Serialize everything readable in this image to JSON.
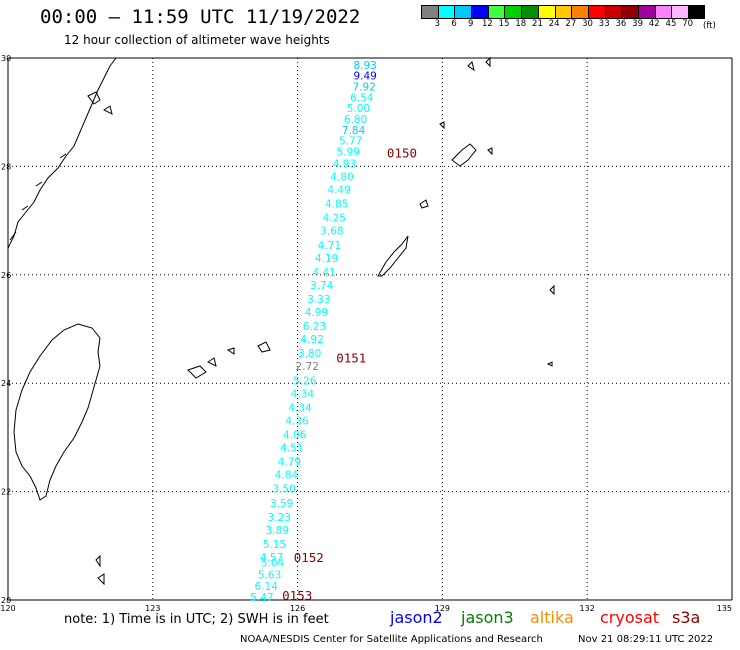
{
  "header": {
    "title": "00:00 – 11:59 UTC 11/19/2022",
    "subtitle": "12 hour collection of altimeter wave heights"
  },
  "legend": {
    "colors": [
      "#808080",
      "#00ffff",
      "#00c8ff",
      "#0000ff",
      "#40ff40",
      "#00d000",
      "#009000",
      "#ffff00",
      "#ffc800",
      "#ff8000",
      "#ff0000",
      "#c80000",
      "#900000",
      "#a000a0",
      "#ff80ff",
      "#ffb4ff",
      "#000000"
    ],
    "labels": [
      "3",
      "6",
      "9",
      "12",
      "15",
      "18",
      "21",
      "24",
      "27",
      "30",
      "33",
      "36",
      "39",
      "42",
      "45",
      "70"
    ],
    "unit": "(ft)"
  },
  "axes": {
    "lat_labels": [
      "30",
      "28",
      "26",
      "24",
      "22",
      "20"
    ],
    "lon_labels": [
      "120",
      "123",
      "126",
      "129",
      "132",
      "135"
    ]
  },
  "chart_data": {
    "type": "map",
    "region": {
      "lon_range": [
        120,
        135
      ],
      "lat_range": [
        20,
        30
      ]
    },
    "swh_unit": "ft",
    "track": [
      {
        "lon": 127.4,
        "lat": 29.8,
        "swh": "8.93",
        "color": "#00c8ff"
      },
      {
        "lon": 127.4,
        "lat": 29.6,
        "swh": "9.49",
        "color": "#0000ff"
      },
      {
        "lon": 127.38,
        "lat": 29.4,
        "swh": "7.92",
        "color": "#00c8ff"
      },
      {
        "lon": 127.33,
        "lat": 29.2,
        "swh": "6.54",
        "color": "#00ffff"
      },
      {
        "lon": 127.26,
        "lat": 29.0,
        "swh": "5.00",
        "color": "#00ffff"
      },
      {
        "lon": 127.2,
        "lat": 28.8,
        "swh": "6.80",
        "color": "#00ffff"
      },
      {
        "lon": 127.16,
        "lat": 28.6,
        "swh": "7.84",
        "color": "#00c8ff"
      },
      {
        "lon": 127.1,
        "lat": 28.4,
        "swh": "5.77",
        "color": "#00ffff"
      },
      {
        "lon": 127.05,
        "lat": 28.2,
        "swh": "5.99",
        "color": "#00ffff"
      },
      {
        "lon": 126.97,
        "lat": 27.98,
        "swh": "4.93",
        "color": "#00ffff"
      },
      {
        "lon": 126.92,
        "lat": 27.74,
        "swh": "4.80",
        "color": "#00ffff"
      },
      {
        "lon": 126.86,
        "lat": 27.5,
        "swh": "4.49",
        "color": "#00ffff"
      },
      {
        "lon": 126.81,
        "lat": 27.24,
        "swh": "4.85",
        "color": "#00ffff"
      },
      {
        "lon": 126.76,
        "lat": 26.98,
        "swh": "4.25",
        "color": "#00ffff"
      },
      {
        "lon": 126.71,
        "lat": 26.74,
        "swh": "3.68",
        "color": "#00ffff"
      },
      {
        "lon": 126.66,
        "lat": 26.48,
        "swh": "4.71",
        "color": "#00ffff"
      },
      {
        "lon": 126.6,
        "lat": 26.24,
        "swh": "4.19",
        "color": "#00ffff"
      },
      {
        "lon": 126.55,
        "lat": 25.98,
        "swh": "4.41",
        "color": "#00ffff"
      },
      {
        "lon": 126.5,
        "lat": 25.74,
        "swh": "3.74",
        "color": "#00ffff"
      },
      {
        "lon": 126.44,
        "lat": 25.48,
        "swh": "3.33",
        "color": "#00ffff"
      },
      {
        "lon": 126.39,
        "lat": 25.24,
        "swh": "4.99",
        "color": "#00ffff"
      },
      {
        "lon": 126.35,
        "lat": 24.98,
        "swh": "6.23",
        "color": "#00ffff"
      },
      {
        "lon": 126.3,
        "lat": 24.74,
        "swh": "4.92",
        "color": "#00ffff"
      },
      {
        "lon": 126.25,
        "lat": 24.48,
        "swh": "3.80",
        "color": "#00ffff"
      },
      {
        "lon": 126.2,
        "lat": 24.24,
        "swh": "2.72",
        "color": "#808080"
      },
      {
        "lon": 126.15,
        "lat": 23.98,
        "swh": "5.26",
        "color": "#00ffff"
      },
      {
        "lon": 126.1,
        "lat": 23.74,
        "swh": "4.34",
        "color": "#00ffff"
      },
      {
        "lon": 126.05,
        "lat": 23.48,
        "swh": "4.34",
        "color": "#00ffff"
      },
      {
        "lon": 125.99,
        "lat": 23.24,
        "swh": "4.36",
        "color": "#00ffff"
      },
      {
        "lon": 125.94,
        "lat": 22.98,
        "swh": "4.06",
        "color": "#00ffff"
      },
      {
        "lon": 125.88,
        "lat": 22.74,
        "swh": "4.51",
        "color": "#00ffff"
      },
      {
        "lon": 125.83,
        "lat": 22.48,
        "swh": "4.79",
        "color": "#00ffff"
      },
      {
        "lon": 125.77,
        "lat": 22.24,
        "swh": "4.84",
        "color": "#00ffff"
      },
      {
        "lon": 125.72,
        "lat": 21.98,
        "swh": "3.50",
        "color": "#00ffff"
      },
      {
        "lon": 125.67,
        "lat": 21.72,
        "swh": "3.59",
        "color": "#00ffff"
      },
      {
        "lon": 125.62,
        "lat": 21.46,
        "swh": "3.23",
        "color": "#00ffff"
      },
      {
        "lon": 125.58,
        "lat": 21.22,
        "swh": "3.89",
        "color": "#00ffff"
      },
      {
        "lon": 125.52,
        "lat": 20.96,
        "swh": "5.15",
        "color": "#00ffff"
      },
      {
        "lon": 125.46,
        "lat": 20.72,
        "swh": "4.57",
        "color": "#00ffff"
      },
      {
        "lon": 125.48,
        "lat": 20.62,
        "swh": "5.04",
        "color": "#00ffff"
      },
      {
        "lon": 125.42,
        "lat": 20.4,
        "swh": "5.63",
        "color": "#00ffff"
      },
      {
        "lon": 125.35,
        "lat": 20.18,
        "swh": "6.14",
        "color": "#00ffff"
      },
      {
        "lon": 125.26,
        "lat": 19.98,
        "swh": "5.47",
        "color": "#00ffff"
      }
    ],
    "time_labels": [
      {
        "lon": 127.85,
        "lat": 28.16,
        "text": "0150"
      },
      {
        "lon": 126.8,
        "lat": 24.38,
        "text": "0151"
      },
      {
        "lon": 125.92,
        "lat": 20.7,
        "text": "0152"
      },
      {
        "lon": 125.68,
        "lat": 20.0,
        "text": "0153"
      }
    ]
  },
  "notes": {
    "note": "note: 1) Time is in UTC; 2) SWH is in feet",
    "satellites": [
      {
        "name": "jason2",
        "color": "#0000ff"
      },
      {
        "name": "jason3",
        "color": "#008000"
      },
      {
        "name": "altika",
        "color": "#ff8c00"
      },
      {
        "name": "cryosat",
        "color": "#ff0000"
      },
      {
        "name": "s3a",
        "color": "#8b0000"
      }
    ]
  },
  "footer": {
    "credit": "NOAA/NESDIS Center for Satellite Applications and Research",
    "timestamp": "Nov 21 08:29:11 UTC 2022"
  }
}
